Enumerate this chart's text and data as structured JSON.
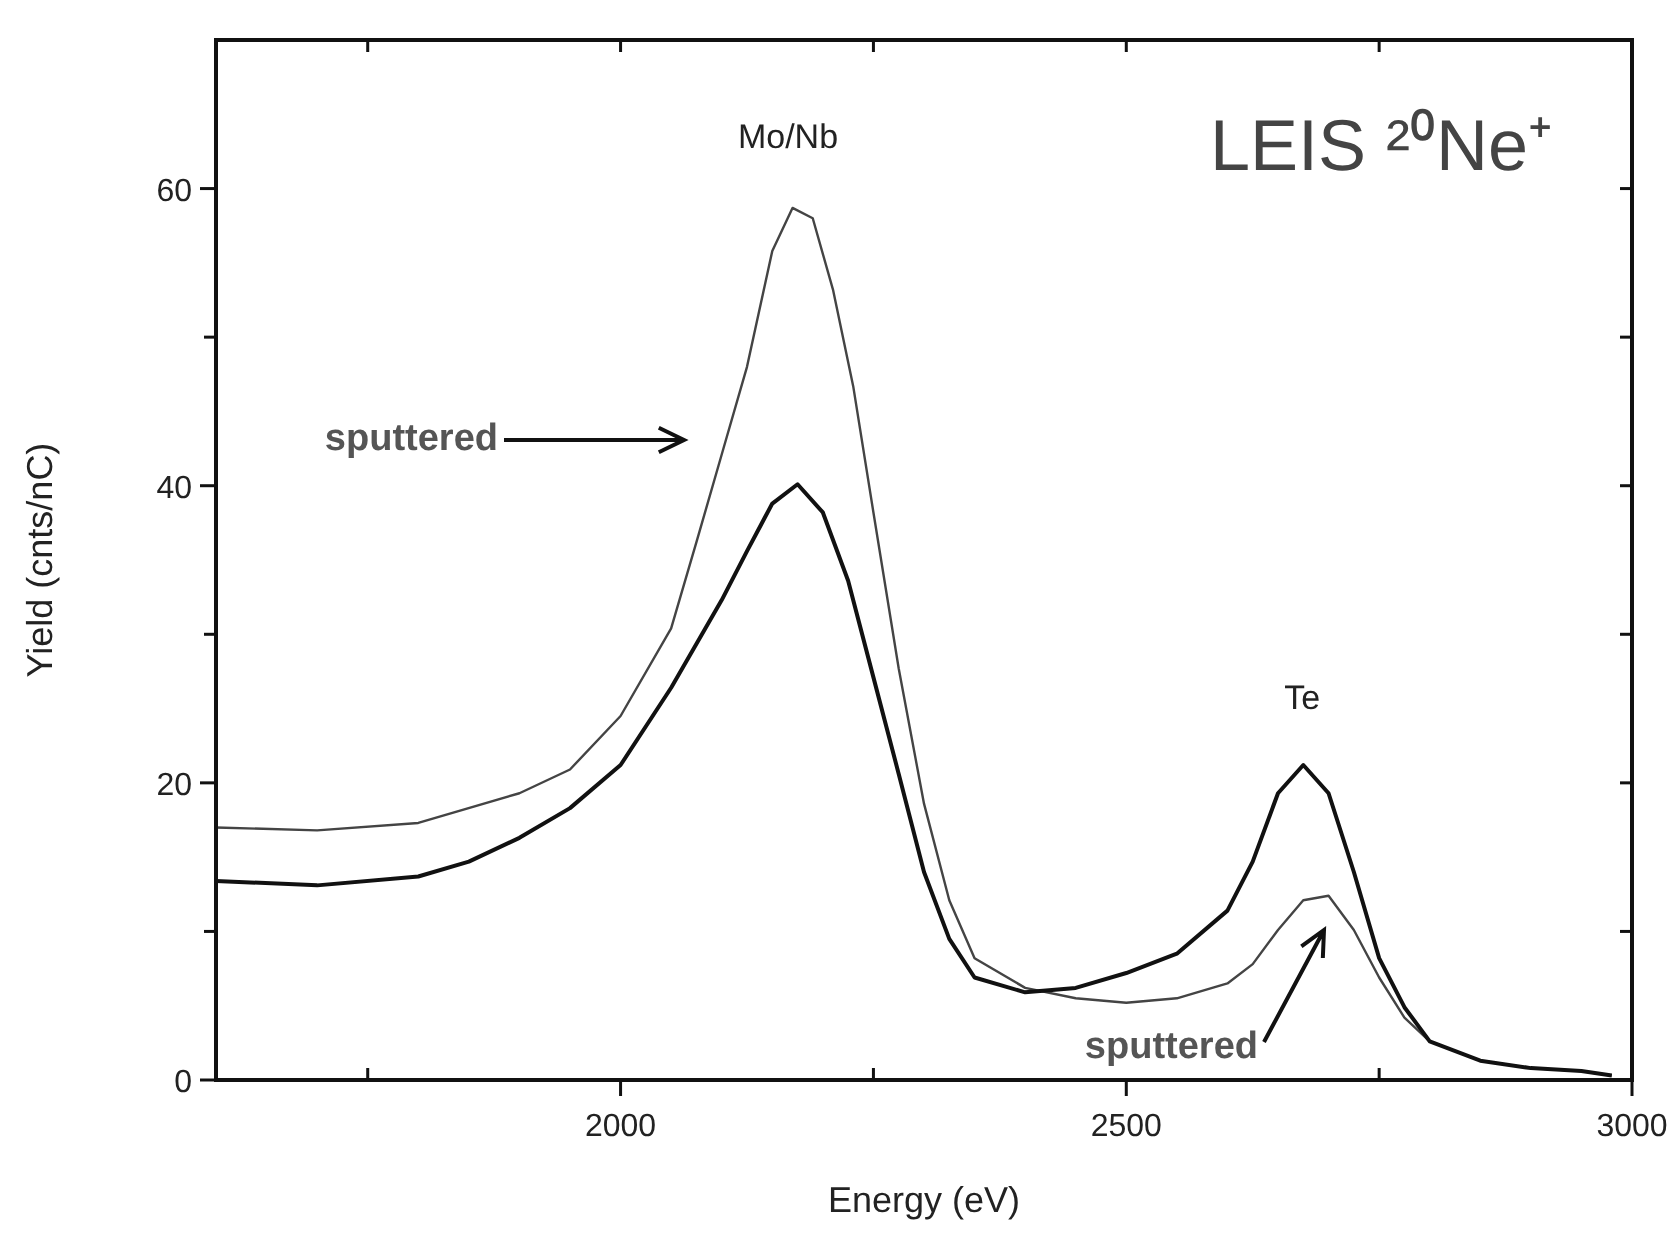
{
  "chart_data": {
    "type": "line",
    "title": "LEIS ²⁰Ne⁺",
    "xlabel": "Energy (eV)",
    "ylabel": "Yield (cnts/nC)",
    "xlim": [
      1600,
      3000
    ],
    "xticks": [
      {
        "value": 1750,
        "label": null
      },
      2000,
      {
        "value": 2250,
        "label": null
      },
      2500,
      {
        "value": 2750,
        "label": null
      },
      3000
    ],
    "ylim": [
      0,
      70
    ],
    "yticks": [
      0,
      {
        "value": 10,
        "label": null
      },
      20,
      {
        "value": 30,
        "label": null
      },
      40,
      {
        "value": 50,
        "label": null
      },
      60
    ],
    "grid": false,
    "marker": "none",
    "line_style": "solid",
    "series": [
      {
        "color": "#444444",
        "x": [
          1600,
          1700,
          1800,
          1900,
          1950,
          2000,
          2050,
          2075,
          2100,
          2125,
          2150,
          2170,
          2190,
          2210,
          2230,
          2250,
          2275,
          2300,
          2325,
          2350,
          2400,
          2450,
          2500,
          2550,
          2600,
          2625,
          2650,
          2675,
          2700,
          2725,
          2750,
          2775,
          2800,
          2850,
          2900,
          2950,
          2980
        ],
        "values": [
          17.0,
          16.8,
          17.3,
          19.3,
          20.9,
          24.5,
          30.4,
          36.2,
          42.1,
          48,
          55.8,
          58.7,
          58,
          53.2,
          46.7,
          38.2,
          27.7,
          18.6,
          12.1,
          8.2,
          6.2,
          5.5,
          5.2,
          5.5,
          6.5,
          7.8,
          10.1,
          12.1,
          12.4,
          10.1,
          6.9,
          4.2,
          2.6,
          1.3,
          0.8,
          0.6,
          0.3
        ]
      },
      {
        "color": "#111111",
        "x": [
          1600,
          1700,
          1800,
          1850,
          1900,
          1950,
          2000,
          2050,
          2100,
          2125,
          2150,
          2175,
          2200,
          2225,
          2250,
          2275,
          2300,
          2325,
          2350,
          2400,
          2450,
          2500,
          2550,
          2600,
          2625,
          2650,
          2675,
          2700,
          2725,
          2750,
          2775,
          2800,
          2850,
          2900,
          2950,
          2980
        ],
        "values": [
          13.4,
          13.1,
          13.7,
          14.7,
          16.3,
          18.3,
          21.2,
          26.4,
          32.3,
          35.6,
          38.8,
          40.1,
          38.2,
          33.6,
          27.1,
          20.6,
          14,
          9.5,
          6.9,
          5.9,
          6.2,
          7.2,
          8.5,
          11.4,
          14.7,
          19.3,
          21.2,
          19.3,
          14,
          8.2,
          4.9,
          2.6,
          1.3,
          0.8,
          0.6,
          0.3
        ]
      }
    ],
    "annotations": [
      "Mo/Nb",
      {
        "text": "Te",
        "x": 2674,
        "y": 21.5
      },
      "sputtered",
      "sputtered"
    ]
  }
}
